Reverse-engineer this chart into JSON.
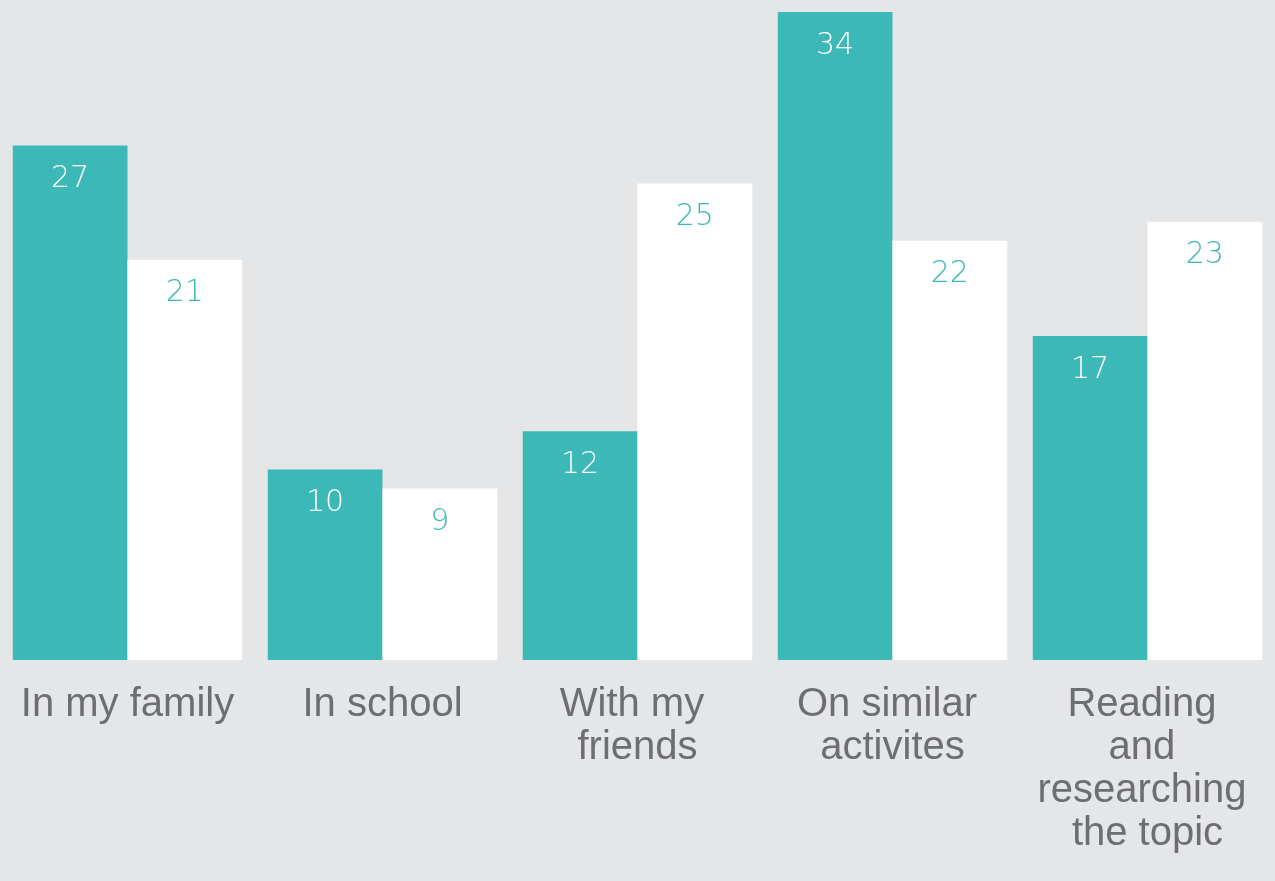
{
  "chart_data": {
    "type": "bar",
    "categories": [
      "In my family",
      "In school",
      "With my friends",
      "On similar activites",
      "Reading and researching the topic"
    ],
    "series": [
      {
        "color": "#3cb8b6",
        "values": [
          27,
          10,
          12,
          34,
          17
        ]
      },
      {
        "color": "#ffffff",
        "values": [
          21,
          9,
          25,
          22,
          23
        ]
      }
    ],
    "data_labels": true
  }
}
